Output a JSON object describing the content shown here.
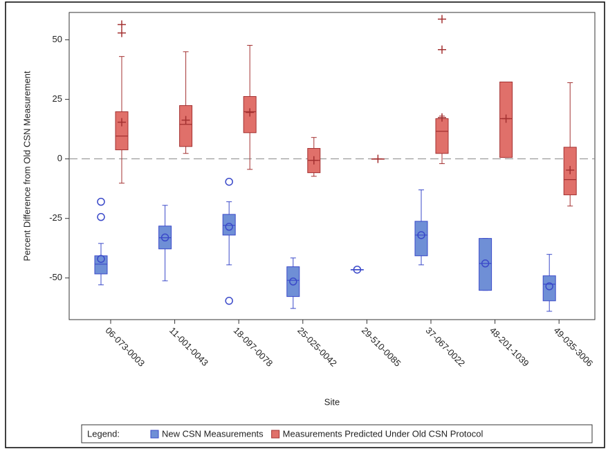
{
  "chart_data": {
    "type": "boxplot",
    "x_label": "Site",
    "y_label": "Percent Difference from Old CSN Measurement",
    "categories": [
      "06-073-0003",
      "11-001-0043",
      "18-097-0078",
      "25-025-0042",
      "29-510-0085",
      "37-067-0022",
      "48-201-1039",
      "49-035-3006"
    ],
    "ylim": [
      -67.5,
      61.5
    ],
    "yticks": [
      -50,
      -25,
      0,
      25,
      50
    ],
    "reference_line": 0,
    "legend_title": "Legend:",
    "series": [
      {
        "name": "New CSN Measurements",
        "color": "#6f8fd6",
        "edge": "#3a49c9",
        "mean_marker": "circle",
        "boxes": [
          {
            "low": -52.9,
            "q1": -48.3,
            "median": -44.2,
            "q3": -40.7,
            "high": -35.5,
            "mean": -42,
            "outliers": [
              -18,
              -24.4
            ]
          },
          {
            "low": -51.2,
            "q1": -37.8,
            "median": -33.1,
            "q3": -28.2,
            "high": -19.5,
            "mean": -33,
            "outliers": []
          },
          {
            "low": -44.5,
            "q1": -32,
            "median": -27.9,
            "q3": -23.3,
            "high": -18,
            "mean": -28.5,
            "outliers": [
              -9.6,
              -59.6
            ]
          },
          {
            "low": -62.8,
            "q1": -57.8,
            "median": -51,
            "q3": -45.3,
            "high": -41.6,
            "mean": -51.5,
            "outliers": []
          },
          {
            "low": -46.5,
            "q1": -46.5,
            "median": -46.5,
            "q3": -46.5,
            "high": -46.5,
            "mean": -46.5,
            "outliers": []
          },
          {
            "low": -44.5,
            "q1": -40.7,
            "median": -32,
            "q3": -26.2,
            "high": -13,
            "mean": -32,
            "outliers": []
          },
          {
            "low": -55.2,
            "q1": -55.2,
            "median": -43.9,
            "q3": -33.4,
            "high": -33.4,
            "mean": -43.9,
            "outliers": []
          },
          {
            "low": -64,
            "q1": -59.6,
            "median": -52.6,
            "q3": -49.1,
            "high": -40.1,
            "mean": -53.5,
            "outliers": []
          }
        ]
      },
      {
        "name": "Measurements Predicted Under Old CSN Protocol",
        "color": "#e0706a",
        "edge": "#a33030",
        "mean_marker": "plus",
        "boxes": [
          {
            "low": -10.2,
            "q1": 3.8,
            "median": 9.6,
            "q3": 19.8,
            "high": 43,
            "mean": 15.4,
            "outliers": [
              56.4,
              52.9
            ]
          },
          {
            "low": 2.3,
            "q1": 5.2,
            "median": 14.5,
            "q3": 22.4,
            "high": 45,
            "mean": 16.3,
            "outliers": []
          },
          {
            "low": -4.4,
            "q1": 11,
            "median": 19.8,
            "q3": 26.2,
            "high": 47.7,
            "mean": 19.5,
            "outliers": []
          },
          {
            "low": -7.3,
            "q1": -5.8,
            "median": -0.6,
            "q3": 4.4,
            "high": 9,
            "mean": -0.6,
            "outliers": []
          },
          {
            "low": 0,
            "q1": 0,
            "median": 0,
            "q3": 0,
            "high": 0,
            "mean": 0,
            "outliers": []
          },
          {
            "low": -2,
            "q1": 2.3,
            "median": 11.6,
            "q3": 16.9,
            "high": 18,
            "mean": 17.4,
            "outliers": [
              58.7,
              45.9
            ]
          },
          {
            "low": 0.6,
            "q1": 0.6,
            "median": 16.9,
            "q3": 32.3,
            "high": 32.3,
            "mean": 16.9,
            "outliers": []
          },
          {
            "low": -19.8,
            "q1": -15.1,
            "median": -8.7,
            "q3": 4.9,
            "high": 32,
            "mean": -4.7,
            "outliers": []
          }
        ]
      }
    ]
  }
}
